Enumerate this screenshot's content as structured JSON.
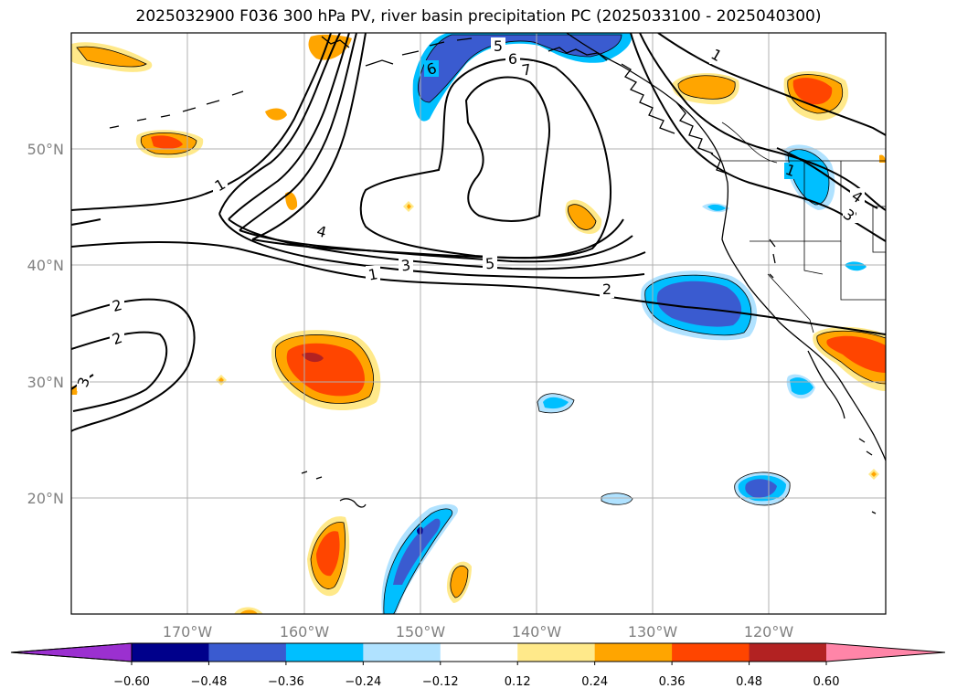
{
  "title": "2025032900 F036 300 hPa PV, river basin precipitation PC (2025033100 - 2025040300)",
  "lat_labels": [
    "50°N",
    "40°N",
    "30°N",
    "20°N"
  ],
  "lon_labels": [
    "170°W",
    "160°W",
    "150°W",
    "140°W",
    "130°W",
    "120°W"
  ],
  "contour_labels": [
    "1",
    "1",
    "1",
    "2",
    "2",
    "3",
    "3",
    "3",
    "4",
    "4",
    "5",
    "5",
    "6",
    "6",
    "7",
    "1",
    "2",
    "3"
  ],
  "colorbar": {
    "tick_labels": [
      "−0.60",
      "−0.48",
      "−0.36",
      "−0.24",
      "−0.12",
      "0.12",
      "0.24",
      "0.36",
      "0.48",
      "0.60"
    ],
    "colors": [
      "#9b30d0",
      "#00008b",
      "#3a5bd0",
      "#00bfff",
      "#b0e2ff",
      "#ffffff",
      "#ffe98a",
      "#ffa500",
      "#ff4500",
      "#b22222",
      "#ff85a8"
    ]
  }
}
